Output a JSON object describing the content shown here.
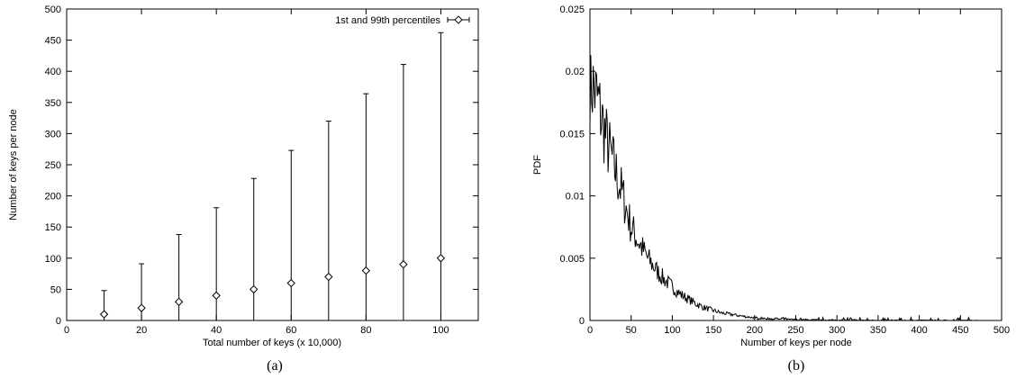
{
  "chart_data": [
    {
      "type": "errorbar",
      "caption": "(a)",
      "xlabel": "Total number of keys (x 10,000)",
      "ylabel": "Number of keys per node",
      "xlim": [
        0,
        110
      ],
      "ylim": [
        0,
        500
      ],
      "xticks": [
        0,
        20,
        40,
        60,
        80,
        100
      ],
      "yticks": [
        0,
        50,
        100,
        150,
        200,
        250,
        300,
        350,
        400,
        450,
        500
      ],
      "legend": {
        "label": "1st and 99th percentiles",
        "position": "top-right"
      },
      "grid": false,
      "x": [
        10,
        20,
        30,
        40,
        50,
        60,
        70,
        80,
        90,
        100
      ],
      "mean": [
        10,
        20,
        30,
        40,
        50,
        60,
        70,
        80,
        90,
        100
      ],
      "p1": [
        0,
        0,
        0,
        0,
        0,
        0,
        0,
        0,
        0,
        0
      ],
      "p99": [
        48,
        91,
        138,
        181,
        228,
        273,
        320,
        364,
        411,
        462
      ]
    },
    {
      "type": "line",
      "caption": "(b)",
      "xlabel": "Number of keys per node",
      "ylabel": "PDF",
      "xlim": [
        0,
        500
      ],
      "ylim": [
        0,
        0.025
      ],
      "xticks": [
        0,
        50,
        100,
        150,
        200,
        250,
        300,
        350,
        400,
        450,
        500
      ],
      "yticks": [
        0,
        0.005,
        0.01,
        0.015,
        0.02,
        0.025
      ],
      "ytick_labels": [
        "0",
        "0.005",
        "0.01",
        "0.015",
        "0.02",
        "0.025"
      ],
      "grid": false,
      "envelope_x": [
        0,
        10,
        20,
        30,
        40,
        50,
        60,
        70,
        80,
        90,
        100,
        110,
        120,
        130,
        140,
        150,
        160,
        170,
        180,
        190,
        200,
        220,
        240,
        260,
        280,
        300,
        340,
        380,
        420,
        460,
        500
      ],
      "envelope_y": [
        0.0195,
        0.0175,
        0.0145,
        0.0122,
        0.01,
        0.0075,
        0.0062,
        0.005,
        0.0041,
        0.0033,
        0.0027,
        0.0021,
        0.0017,
        0.0013,
        0.001,
        0.0008,
        0.0006,
        0.0005,
        0.0004,
        0.0003,
        0.00022,
        0.00014,
        9e-05,
        6e-05,
        4e-05,
        3e-05,
        2e-05,
        1e-05,
        1e-05,
        0.0,
        0.0
      ]
    }
  ]
}
